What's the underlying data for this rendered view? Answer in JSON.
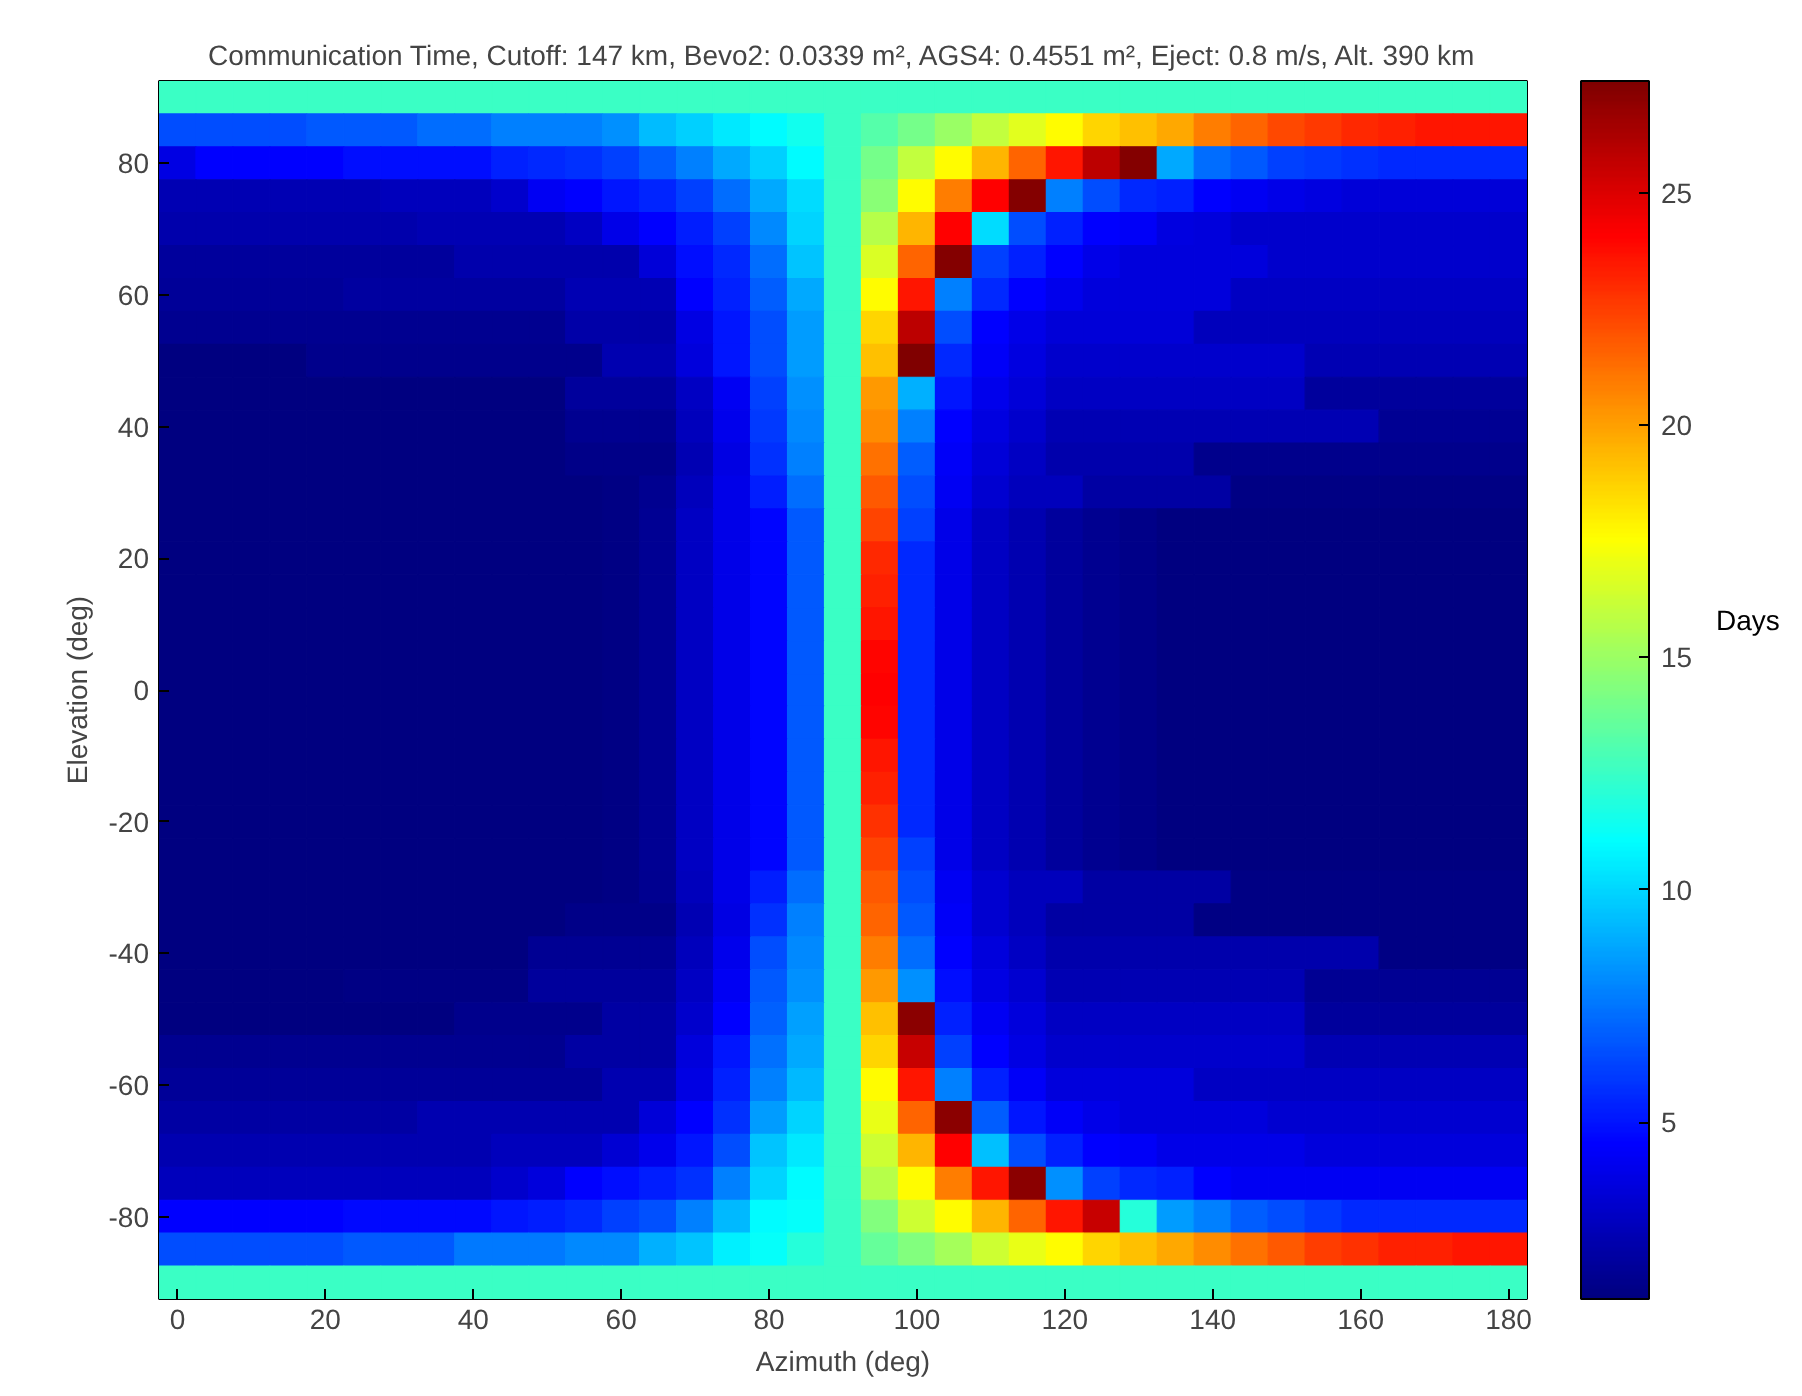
{
  "chart_data": {
    "type": "heatmap",
    "title": "Communication Time, Cutoff: 147 km, Bevo2: 0.0339 m², AGS4: 0.4551 m², Eject: 0.8 m/s, Alt. 390 km",
    "xlabel": "Azimuth (deg)",
    "ylabel": "Elevation (deg)",
    "clabel": "Days",
    "categories": [
      "0",
      null,
      null,
      null,
      "20",
      null,
      null,
      null,
      "40",
      null,
      null,
      null,
      "60",
      null,
      null,
      null,
      "80",
      null,
      null,
      null,
      "100",
      null,
      null,
      null,
      "120",
      null,
      null,
      null,
      "140",
      null,
      null,
      null,
      "160",
      null,
      null,
      null,
      "180"
    ],
    "y_categories": [
      null,
      null,
      "80",
      null,
      null,
      null,
      "60",
      null,
      null,
      null,
      "40",
      null,
      null,
      null,
      "20",
      null,
      null,
      null,
      "0",
      null,
      null,
      null,
      "-20",
      null,
      null,
      null,
      "-40",
      null,
      null,
      null,
      "-60",
      null,
      null,
      null,
      "-80",
      null,
      null
    ],
    "clim": [
      1.2,
      27.4
    ],
    "cticks": [
      5,
      10,
      15,
      20,
      25
    ],
    "cells": [
      [
        12.5,
        12.5,
        12.5,
        12.5,
        12.5,
        12.5,
        12.5,
        12.5,
        12.5,
        12.5,
        12.5,
        12.5,
        12.5,
        12.5,
        12.5,
        12.5,
        12.5,
        12.5,
        12.5,
        12.5,
        12.5,
        12.5,
        12.5,
        12.5,
        12.5,
        12.5,
        12.5,
        12.5,
        12.5,
        12.5,
        12.5,
        12.5,
        12.5,
        12.5,
        12.5,
        12.5,
        12.5
      ],
      [
        6.5,
        6.5,
        6.5,
        6.5,
        6.8,
        6.8,
        6.8,
        7.3,
        7.3,
        7.8,
        7.8,
        7.8,
        8.2,
        9.3,
        9.8,
        10.5,
        11.0,
        11.5,
        12.5,
        13.2,
        14.0,
        15.0,
        16.0,
        16.8,
        17.6,
        18.6,
        19.2,
        19.8,
        20.9,
        21.5,
        22.2,
        22.6,
        23.0,
        23.3,
        23.6,
        23.6,
        23.6
      ],
      [
        3.8,
        4.5,
        4.5,
        4.5,
        4.5,
        4.8,
        4.8,
        4.8,
        4.8,
        5.3,
        5.5,
        5.8,
        6.2,
        6.9,
        7.8,
        8.8,
        9.8,
        11.0,
        12.5,
        14.0,
        16.0,
        17.6,
        19.5,
        21.5,
        23.6,
        25.8,
        27.2,
        8.8,
        7.3,
        6.8,
        6.2,
        6.0,
        5.8,
        5.6,
        5.5,
        5.5,
        5.5
      ],
      [
        2.6,
        2.6,
        2.6,
        2.6,
        2.6,
        2.6,
        2.8,
        2.8,
        2.8,
        3.2,
        4.2,
        4.5,
        5.0,
        5.4,
        6.2,
        7.3,
        8.8,
        10.2,
        12.5,
        14.6,
        17.6,
        20.9,
        24.1,
        27.2,
        7.8,
        6.5,
        5.6,
        5.3,
        4.5,
        4.2,
        3.9,
        3.7,
        3.5,
        3.5,
        3.5,
        3.5,
        3.5
      ],
      [
        2.4,
        2.4,
        2.4,
        2.4,
        2.4,
        2.4,
        2.4,
        2.6,
        2.6,
        2.6,
        2.6,
        3.0,
        3.9,
        4.5,
        5.2,
        6.2,
        8.0,
        9.9,
        12.5,
        15.7,
        19.5,
        24.1,
        10.2,
        6.5,
        5.3,
        4.5,
        4.3,
        3.7,
        3.6,
        3.2,
        3.2,
        3.2,
        3.2,
        3.2,
        3.2,
        3.2,
        3.2
      ],
      [
        2.0,
        2.0,
        2.0,
        2.0,
        2.0,
        2.0,
        2.0,
        2.0,
        2.4,
        2.4,
        2.4,
        2.4,
        2.4,
        3.5,
        4.8,
        5.6,
        7.3,
        9.5,
        12.5,
        16.6,
        21.5,
        27.2,
        6.2,
        5.3,
        4.5,
        3.9,
        3.6,
        3.6,
        3.6,
        3.6,
        3.2,
        3.2,
        3.2,
        3.2,
        3.2,
        3.2,
        3.2
      ],
      [
        1.9,
        1.9,
        1.9,
        1.9,
        1.9,
        2.1,
        2.1,
        2.1,
        2.1,
        2.1,
        2.1,
        2.6,
        2.6,
        2.6,
        4.5,
        5.3,
        6.9,
        8.8,
        12.5,
        17.6,
        23.6,
        7.8,
        5.6,
        4.5,
        4.0,
        3.6,
        3.6,
        3.6,
        3.6,
        3.0,
        3.0,
        3.0,
        3.0,
        3.0,
        3.0,
        3.0,
        3.0
      ],
      [
        1.7,
        1.7,
        1.7,
        1.7,
        1.7,
        1.7,
        1.7,
        1.7,
        1.7,
        1.7,
        1.7,
        2.3,
        2.3,
        2.3,
        3.8,
        5.0,
        6.5,
        8.5,
        12.5,
        18.6,
        25.8,
        6.5,
        4.5,
        3.9,
        3.5,
        3.5,
        3.5,
        3.5,
        2.8,
        2.8,
        2.8,
        2.8,
        2.8,
        2.8,
        2.8,
        2.8,
        2.8
      ],
      [
        1.3,
        1.3,
        1.3,
        1.3,
        1.6,
        1.6,
        1.6,
        1.6,
        1.6,
        1.6,
        1.6,
        1.6,
        2.5,
        2.5,
        3.6,
        5.0,
        6.5,
        8.5,
        12.5,
        19.2,
        27.3,
        5.6,
        4.3,
        3.7,
        3.2,
        3.2,
        3.2,
        3.2,
        3.2,
        3.2,
        3.2,
        2.6,
        2.6,
        2.6,
        2.6,
        2.6,
        2.6
      ],
      [
        1.2,
        1.2,
        1.2,
        1.2,
        1.3,
        1.3,
        1.3,
        1.3,
        1.3,
        1.3,
        1.3,
        2.0,
        2.0,
        2.0,
        3.0,
        4.2,
        6.2,
        8.2,
        12.5,
        20.2,
        9.0,
        5.0,
        4.0,
        3.5,
        3.0,
        3.0,
        3.0,
        3.0,
        3.0,
        3.0,
        3.0,
        2.0,
        2.0,
        2.0,
        2.0,
        2.0,
        2.0
      ],
      [
        1.2,
        1.2,
        1.2,
        1.2,
        1.2,
        1.2,
        1.2,
        1.2,
        1.2,
        1.2,
        1.2,
        1.7,
        1.7,
        1.7,
        2.8,
        4.0,
        6.0,
        8.0,
        12.5,
        20.5,
        7.8,
        4.5,
        3.7,
        3.2,
        2.6,
        2.6,
        2.6,
        2.6,
        2.6,
        2.6,
        2.6,
        2.6,
        2.6,
        1.8,
        1.8,
        1.8,
        1.8
      ],
      [
        1.2,
        1.2,
        1.2,
        1.2,
        1.2,
        1.2,
        1.2,
        1.2,
        1.2,
        1.2,
        1.2,
        1.5,
        1.5,
        1.5,
        2.6,
        3.8,
        5.8,
        7.8,
        12.5,
        21.2,
        6.9,
        4.3,
        3.5,
        3.0,
        2.4,
        2.4,
        2.4,
        2.4,
        1.6,
        1.6,
        1.6,
        1.6,
        1.6,
        1.6,
        1.6,
        1.6,
        1.6
      ],
      [
        1.2,
        1.2,
        1.2,
        1.2,
        1.2,
        1.2,
        1.2,
        1.2,
        1.2,
        1.2,
        1.2,
        1.2,
        1.4,
        1.7,
        2.8,
        3.9,
        5.2,
        7.3,
        12.5,
        21.8,
        6.5,
        4.2,
        3.3,
        2.8,
        2.8,
        2.2,
        2.2,
        2.2,
        2.2,
        1.4,
        1.4,
        1.4,
        1.4,
        1.4,
        1.4,
        1.4,
        1.4
      ],
      [
        1.2,
        1.2,
        1.2,
        1.2,
        1.2,
        1.2,
        1.2,
        1.2,
        1.2,
        1.2,
        1.2,
        1.2,
        1.4,
        1.8,
        3.0,
        3.9,
        4.6,
        6.8,
        12.5,
        22.3,
        6.2,
        3.9,
        3.0,
        2.5,
        2.0,
        1.7,
        1.5,
        1.2,
        1.2,
        1.2,
        1.2,
        1.2,
        1.2,
        1.2,
        1.2,
        1.2,
        1.2
      ],
      [
        1.2,
        1.2,
        1.2,
        1.2,
        1.2,
        1.2,
        1.2,
        1.2,
        1.2,
        1.2,
        1.2,
        1.2,
        1.4,
        1.8,
        3.0,
        3.9,
        4.6,
        6.8,
        12.5,
        23.0,
        5.6,
        3.9,
        3.0,
        2.5,
        2.0,
        1.7,
        1.5,
        1.2,
        1.2,
        1.2,
        1.2,
        1.2,
        1.2,
        1.2,
        1.2,
        1.2,
        1.2
      ],
      [
        1.2,
        1.2,
        1.2,
        1.2,
        1.2,
        1.2,
        1.2,
        1.2,
        1.2,
        1.2,
        1.2,
        1.2,
        1.4,
        1.8,
        3.0,
        3.9,
        4.6,
        6.8,
        12.5,
        23.3,
        5.6,
        3.9,
        3.0,
        2.5,
        2.0,
        1.7,
        1.5,
        1.2,
        1.2,
        1.2,
        1.2,
        1.2,
        1.2,
        1.2,
        1.2,
        1.2,
        1.2
      ],
      [
        1.2,
        1.2,
        1.2,
        1.2,
        1.2,
        1.2,
        1.2,
        1.2,
        1.2,
        1.2,
        1.2,
        1.2,
        1.4,
        1.8,
        3.0,
        3.9,
        4.6,
        6.8,
        12.5,
        23.6,
        5.6,
        3.9,
        3.0,
        2.5,
        2.0,
        1.7,
        1.5,
        1.2,
        1.2,
        1.2,
        1.2,
        1.2,
        1.2,
        1.2,
        1.2,
        1.2,
        1.2
      ],
      [
        1.2,
        1.2,
        1.2,
        1.2,
        1.2,
        1.2,
        1.2,
        1.2,
        1.2,
        1.2,
        1.2,
        1.2,
        1.4,
        1.8,
        3.0,
        3.9,
        4.6,
        6.8,
        12.5,
        24.0,
        5.6,
        3.9,
        3.0,
        2.5,
        2.0,
        1.7,
        1.5,
        1.2,
        1.2,
        1.2,
        1.2,
        1.2,
        1.2,
        1.2,
        1.2,
        1.2,
        1.2
      ],
      [
        1.2,
        1.2,
        1.2,
        1.2,
        1.2,
        1.2,
        1.2,
        1.2,
        1.2,
        1.2,
        1.2,
        1.2,
        1.4,
        1.8,
        3.0,
        3.9,
        4.6,
        6.8,
        12.5,
        24.1,
        5.6,
        3.9,
        3.0,
        2.5,
        2.0,
        1.7,
        1.5,
        1.2,
        1.2,
        1.2,
        1.2,
        1.2,
        1.2,
        1.2,
        1.2,
        1.2,
        1.2
      ],
      [
        1.2,
        1.2,
        1.2,
        1.2,
        1.2,
        1.2,
        1.2,
        1.2,
        1.2,
        1.2,
        1.2,
        1.2,
        1.4,
        1.8,
        3.0,
        3.9,
        4.6,
        6.8,
        12.5,
        24.0,
        5.6,
        3.9,
        3.0,
        2.5,
        2.0,
        1.7,
        1.5,
        1.2,
        1.2,
        1.2,
        1.2,
        1.2,
        1.2,
        1.2,
        1.2,
        1.2,
        1.2
      ],
      [
        1.2,
        1.2,
        1.2,
        1.2,
        1.2,
        1.2,
        1.2,
        1.2,
        1.2,
        1.2,
        1.2,
        1.2,
        1.4,
        1.8,
        3.0,
        3.9,
        4.6,
        6.8,
        12.5,
        23.6,
        5.6,
        3.9,
        3.0,
        2.5,
        2.0,
        1.7,
        1.5,
        1.2,
        1.2,
        1.2,
        1.2,
        1.2,
        1.2,
        1.2,
        1.2,
        1.2,
        1.2
      ],
      [
        1.2,
        1.2,
        1.2,
        1.2,
        1.2,
        1.2,
        1.2,
        1.2,
        1.2,
        1.2,
        1.2,
        1.2,
        1.4,
        1.8,
        3.0,
        3.9,
        4.6,
        6.8,
        12.5,
        23.3,
        5.6,
        3.9,
        3.0,
        2.5,
        2.0,
        1.7,
        1.5,
        1.2,
        1.2,
        1.2,
        1.2,
        1.2,
        1.2,
        1.2,
        1.2,
        1.2,
        1.2
      ],
      [
        1.2,
        1.2,
        1.2,
        1.2,
        1.2,
        1.2,
        1.2,
        1.2,
        1.2,
        1.2,
        1.2,
        1.2,
        1.4,
        1.8,
        3.0,
        3.9,
        4.6,
        6.8,
        12.5,
        22.8,
        5.6,
        3.9,
        3.0,
        2.5,
        2.0,
        1.7,
        1.5,
        1.2,
        1.2,
        1.2,
        1.2,
        1.2,
        1.2,
        1.2,
        1.2,
        1.2,
        1.2
      ],
      [
        1.2,
        1.2,
        1.2,
        1.2,
        1.2,
        1.2,
        1.2,
        1.2,
        1.2,
        1.2,
        1.2,
        1.2,
        1.4,
        1.8,
        3.0,
        3.9,
        4.6,
        6.8,
        12.5,
        22.3,
        6.2,
        3.9,
        3.0,
        2.5,
        2.0,
        1.7,
        1.5,
        1.2,
        1.2,
        1.2,
        1.2,
        1.2,
        1.2,
        1.2,
        1.2,
        1.2,
        1.2
      ],
      [
        1.2,
        1.2,
        1.2,
        1.2,
        1.2,
        1.2,
        1.2,
        1.2,
        1.2,
        1.2,
        1.2,
        1.2,
        1.4,
        1.7,
        2.8,
        3.9,
        5.2,
        7.3,
        12.5,
        21.8,
        6.5,
        4.2,
        3.3,
        2.8,
        2.8,
        2.2,
        2.2,
        2.2,
        2.2,
        1.4,
        1.4,
        1.4,
        1.4,
        1.4,
        1.4,
        1.4,
        1.4
      ],
      [
        1.2,
        1.2,
        1.2,
        1.2,
        1.2,
        1.2,
        1.2,
        1.2,
        1.2,
        1.2,
        1.2,
        1.5,
        1.5,
        1.5,
        2.6,
        3.8,
        5.8,
        7.8,
        12.5,
        21.5,
        6.8,
        4.3,
        3.3,
        2.8,
        2.2,
        2.2,
        2.2,
        2.2,
        1.4,
        1.4,
        1.4,
        1.4,
        1.4,
        1.4,
        1.4,
        1.4,
        1.4
      ],
      [
        1.2,
        1.2,
        1.2,
        1.2,
        1.2,
        1.2,
        1.2,
        1.2,
        1.2,
        1.2,
        1.8,
        1.8,
        1.8,
        1.8,
        2.8,
        4.0,
        6.5,
        8.0,
        12.5,
        20.9,
        7.3,
        4.5,
        3.6,
        3.0,
        2.4,
        2.4,
        2.4,
        2.4,
        2.4,
        2.4,
        2.4,
        2.4,
        2.4,
        1.4,
        1.4,
        1.4,
        1.4
      ],
      [
        1.2,
        1.2,
        1.2,
        1.2,
        1.2,
        1.4,
        1.4,
        1.4,
        1.4,
        1.4,
        2.0,
        2.0,
        2.0,
        2.0,
        3.0,
        4.2,
        6.8,
        8.2,
        12.5,
        20.2,
        8.2,
        4.8,
        3.8,
        3.3,
        2.6,
        2.6,
        2.6,
        2.6,
        2.6,
        2.6,
        2.6,
        1.8,
        1.8,
        1.8,
        1.8,
        1.8,
        1.8
      ],
      [
        1.3,
        1.3,
        1.3,
        1.3,
        1.3,
        1.3,
        1.3,
        1.3,
        1.6,
        1.6,
        1.6,
        1.6,
        2.2,
        2.2,
        3.2,
        4.5,
        7.0,
        8.6,
        12.5,
        19.2,
        27.0,
        5.3,
        4.2,
        3.6,
        3.0,
        3.0,
        3.0,
        3.0,
        3.0,
        3.0,
        3.0,
        2.0,
        2.0,
        2.0,
        2.0,
        2.0,
        2.0
      ],
      [
        1.7,
        1.7,
        1.7,
        1.7,
        1.7,
        1.7,
        1.7,
        1.7,
        1.7,
        1.7,
        1.7,
        2.2,
        2.2,
        2.2,
        3.6,
        5.0,
        7.4,
        8.8,
        12.5,
        18.6,
        25.5,
        6.2,
        4.5,
        3.8,
        3.2,
        3.2,
        3.2,
        3.2,
        3.2,
        3.2,
        3.2,
        2.6,
        2.6,
        2.6,
        2.6,
        2.6,
        2.6
      ],
      [
        1.9,
        1.9,
        1.9,
        1.9,
        1.9,
        1.9,
        1.9,
        1.9,
        1.9,
        1.9,
        1.9,
        1.9,
        2.5,
        2.5,
        3.8,
        5.3,
        7.8,
        9.2,
        12.5,
        17.6,
        23.6,
        7.8,
        5.3,
        4.3,
        3.6,
        3.6,
        3.6,
        3.6,
        3.0,
        3.0,
        3.0,
        3.0,
        3.0,
        3.0,
        3.0,
        3.0,
        3.0
      ],
      [
        2.2,
        2.2,
        2.2,
        2.2,
        2.2,
        2.2,
        2.2,
        2.5,
        2.5,
        2.5,
        2.5,
        2.5,
        2.5,
        3.5,
        4.5,
        5.8,
        8.5,
        10.0,
        12.5,
        17.0,
        21.5,
        27.0,
        6.9,
        5.0,
        4.3,
        3.9,
        3.6,
        3.6,
        3.6,
        3.6,
        3.3,
        3.3,
        3.3,
        3.3,
        3.3,
        3.3,
        3.3
      ],
      [
        2.5,
        2.5,
        2.5,
        2.5,
        2.5,
        2.5,
        2.5,
        2.5,
        2.5,
        2.8,
        2.8,
        2.8,
        3.4,
        4.0,
        5.0,
        6.5,
        9.5,
        10.5,
        12.5,
        16.3,
        19.5,
        24.1,
        9.4,
        6.5,
        5.3,
        4.5,
        4.3,
        3.9,
        3.9,
        3.9,
        3.9,
        3.6,
        3.6,
        3.6,
        3.6,
        3.6,
        3.6
      ],
      [
        2.8,
        2.8,
        2.8,
        2.8,
        2.8,
        2.8,
        2.8,
        2.8,
        2.8,
        3.2,
        3.6,
        4.5,
        4.8,
        5.2,
        5.8,
        7.8,
        10.0,
        11.0,
        12.5,
        15.7,
        17.6,
        20.9,
        23.6,
        27.0,
        8.2,
        6.2,
        5.6,
        5.3,
        4.5,
        4.2,
        4.2,
        4.2,
        4.2,
        4.2,
        4.2,
        4.2,
        4.2
      ],
      [
        4.5,
        4.5,
        4.5,
        4.5,
        4.5,
        4.7,
        4.7,
        4.7,
        4.7,
        5.0,
        5.2,
        5.5,
        6.2,
        6.6,
        7.8,
        9.2,
        11.0,
        11.2,
        12.5,
        14.3,
        16.3,
        17.6,
        19.5,
        21.5,
        23.6,
        25.5,
        12.0,
        8.5,
        7.8,
        6.9,
        6.5,
        6.0,
        5.6,
        5.6,
        5.6,
        5.6,
        5.6
      ],
      [
        6.5,
        6.5,
        6.5,
        6.5,
        6.5,
        6.8,
        6.8,
        6.8,
        7.6,
        7.6,
        7.6,
        8.0,
        8.0,
        9.0,
        9.5,
        10.7,
        11.2,
        12.0,
        12.5,
        13.6,
        14.3,
        15.3,
        16.3,
        17.0,
        17.6,
        18.6,
        19.2,
        19.8,
        20.5,
        21.2,
        21.8,
        22.5,
        22.8,
        23.3,
        23.3,
        23.6,
        23.6
      ],
      [
        12.5,
        12.5,
        12.5,
        12.5,
        12.5,
        12.5,
        12.5,
        12.5,
        12.5,
        12.5,
        12.5,
        12.5,
        12.5,
        12.5,
        12.5,
        12.5,
        12.5,
        12.5,
        12.5,
        12.5,
        12.5,
        12.5,
        12.5,
        12.5,
        12.5,
        12.5,
        12.5,
        12.5,
        12.5,
        12.5,
        12.5,
        12.5,
        12.5,
        12.5,
        12.5,
        12.5,
        12.5
      ]
    ]
  }
}
